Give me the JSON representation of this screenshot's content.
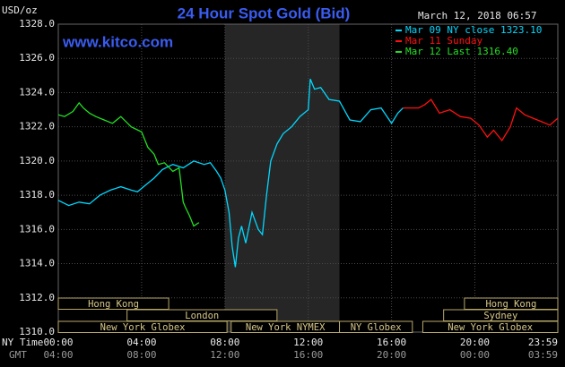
{
  "chart_data": {
    "type": "line",
    "title": "24 Hour Spot Gold (Bid)",
    "timestamp": "March 12, 2018 06:57",
    "y_unit": "USD/oz",
    "watermark": "www.kitco.com",
    "x_axis_label": "NY Time",
    "x2_axis_label": "GMT",
    "xlim": [
      0,
      23.983
    ],
    "ylim": [
      1310,
      1328
    ],
    "grid": true,
    "xticks": [
      {
        "value": 0,
        "label": "00:00"
      },
      {
        "value": 4,
        "label": "04:00"
      },
      {
        "value": 8,
        "label": "08:00"
      },
      {
        "value": 12,
        "label": "12:00"
      },
      {
        "value": 16,
        "label": "16:00"
      },
      {
        "value": 20,
        "label": "20:00"
      },
      {
        "value": 23.983,
        "label": "23:59"
      }
    ],
    "x2ticks": [
      {
        "value": 0,
        "label": "04:00"
      },
      {
        "value": 4,
        "label": "08:00"
      },
      {
        "value": 8,
        "label": "12:00"
      },
      {
        "value": 12,
        "label": "16:00"
      },
      {
        "value": 16,
        "label": "20:00"
      },
      {
        "value": 20,
        "label": "00:00"
      },
      {
        "value": 23.983,
        "label": "03:59"
      }
    ],
    "yticks": [
      {
        "value": 1310,
        "label": "1310.0"
      },
      {
        "value": 1312,
        "label": "1312.0"
      },
      {
        "value": 1314,
        "label": "1314.0"
      },
      {
        "value": 1316,
        "label": "1316.0"
      },
      {
        "value": 1318,
        "label": "1318.0"
      },
      {
        "value": 1320,
        "label": "1320.0"
      },
      {
        "value": 1322,
        "label": "1322.0"
      },
      {
        "value": 1324,
        "label": "1324.0"
      },
      {
        "value": 1326,
        "label": "1326.0"
      },
      {
        "value": 1328,
        "label": "1328.0"
      }
    ],
    "highlight": [
      8,
      13.5
    ],
    "series": [
      {
        "name": "Mar 09 NY close 1323.10",
        "color": "#00d8ff",
        "x": [
          0,
          0.5,
          1,
          1.5,
          2,
          2.5,
          3,
          3.5,
          3.8,
          4.2,
          4.6,
          5,
          5.5,
          6,
          6.5,
          7,
          7.3,
          7.6,
          7.8,
          8,
          8.2,
          8.35,
          8.5,
          8.65,
          8.8,
          9,
          9.3,
          9.6,
          9.8,
          10,
          10.2,
          10.5,
          10.8,
          11.2,
          11.6,
          12,
          12.1,
          12.3,
          12.6,
          13,
          13.5,
          14,
          14.5,
          15,
          15.5,
          16,
          16.3,
          16.55
        ],
        "values": [
          1317.7,
          1317.4,
          1317.6,
          1317.5,
          1318.0,
          1318.3,
          1318.5,
          1318.3,
          1318.2,
          1318.6,
          1319.0,
          1319.5,
          1319.8,
          1319.6,
          1320.0,
          1319.8,
          1319.9,
          1319.4,
          1319.0,
          1318.3,
          1317.0,
          1315.0,
          1313.8,
          1315.5,
          1316.2,
          1315.2,
          1317.0,
          1316.0,
          1315.7,
          1318.0,
          1320.0,
          1321.0,
          1321.6,
          1322.0,
          1322.6,
          1323.0,
          1324.8,
          1324.2,
          1324.3,
          1323.6,
          1323.5,
          1322.4,
          1322.3,
          1323.0,
          1323.1,
          1322.2,
          1322.8,
          1323.1
        ]
      },
      {
        "name": "Mar 11 Sunday",
        "color": "#ff1010",
        "x": [
          16.55,
          17.3,
          17.6,
          17.9,
          18.3,
          18.8,
          19.3,
          19.8,
          20.2,
          20.6,
          20.9,
          21.3,
          21.7,
          22.0,
          22.4,
          22.8,
          23.2,
          23.6,
          23.98
        ],
        "values": [
          1323.1,
          1323.1,
          1323.3,
          1323.6,
          1322.8,
          1323.0,
          1322.6,
          1322.5,
          1322.1,
          1321.4,
          1321.8,
          1321.2,
          1322.0,
          1323.1,
          1322.7,
          1322.5,
          1322.3,
          1322.1,
          1322.5
        ]
      },
      {
        "name": "Mar 12 Last 1316.40",
        "color": "#22e022",
        "x": [
          0,
          0.3,
          0.7,
          1,
          1.2,
          1.5,
          1.8,
          2.2,
          2.6,
          3,
          3.5,
          4,
          4.3,
          4.6,
          4.8,
          5.1,
          5.5,
          5.8,
          5.9,
          6.0,
          6.1,
          6.3,
          6.5,
          6.75
        ],
        "values": [
          1322.7,
          1322.6,
          1322.9,
          1323.4,
          1323.1,
          1322.8,
          1322.6,
          1322.4,
          1322.2,
          1322.6,
          1322.0,
          1321.7,
          1320.8,
          1320.4,
          1319.8,
          1319.9,
          1319.4,
          1319.6,
          1318.6,
          1317.6,
          1317.3,
          1316.8,
          1316.2,
          1316.4
        ]
      }
    ],
    "sessions": [
      {
        "label": "Hong Kong",
        "start": 0,
        "end": 5.3,
        "row": 0
      },
      {
        "label": "Hong Kong",
        "start": 19.5,
        "end": 23.983,
        "row": 0
      },
      {
        "label": "London",
        "start": 3.3,
        "end": 10.5,
        "row": 1
      },
      {
        "label": "Sydney",
        "start": 18.5,
        "end": 23.983,
        "row": 1
      },
      {
        "label": "New York Globex",
        "start": 0,
        "end": 8.1,
        "row": 2
      },
      {
        "label": "New York NYMEX",
        "start": 8.3,
        "end": 13.5,
        "row": 2
      },
      {
        "label": "NY Globex",
        "start": 13.5,
        "end": 17,
        "row": 2
      },
      {
        "label": "New York Globex",
        "start": 17.5,
        "end": 23.983,
        "row": 2
      }
    ]
  }
}
